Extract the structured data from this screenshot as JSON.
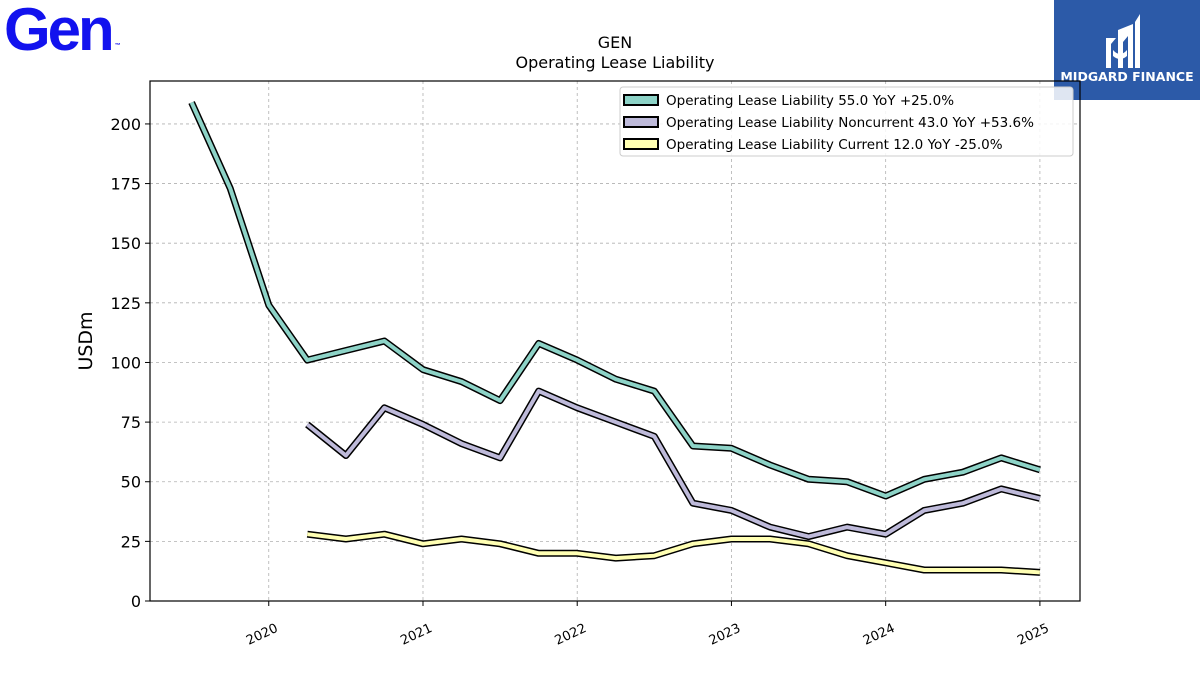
{
  "brand": {
    "name": "Gen",
    "tm": "™",
    "color": "#1212ee"
  },
  "badge": {
    "name": "MIDGARD FINANCE",
    "bg": "#2c5aa8"
  },
  "chart_data": {
    "type": "line",
    "title": "GEN",
    "subtitle": "Operating Lease Liability",
    "ylabel": "USDm",
    "xlabel": "",
    "ylim": [
      0,
      218
    ],
    "xlim": [
      2019.23,
      2025.26
    ],
    "yticks": [
      0,
      25,
      50,
      75,
      100,
      125,
      150,
      175,
      200
    ],
    "xticks": [
      2020,
      2021,
      2022,
      2023,
      2024,
      2025
    ],
    "grid": true,
    "legend_position": "top-right",
    "series": [
      {
        "name": "Operating Lease Liability  55.0 YoY +25.0%",
        "color": "#8dd3c7",
        "x": [
          2019.5,
          2019.75,
          2020.0,
          2020.25,
          2020.5,
          2020.75,
          2021.0,
          2021.25,
          2021.5,
          2021.75,
          2022.0,
          2022.25,
          2022.5,
          2022.75,
          2023.0,
          2023.25,
          2023.5,
          2023.75,
          2024.0,
          2024.25,
          2024.5,
          2024.75,
          2025.0
        ],
        "values": [
          209,
          173,
          124,
          101,
          105,
          109,
          97,
          92,
          84,
          108,
          101,
          93,
          88,
          65,
          64,
          57,
          51,
          50,
          44,
          51,
          54,
          60,
          55
        ]
      },
      {
        "name": "Operating Lease Liability Noncurrent  43.0 YoY +53.6%",
        "color": "#bebada",
        "x": [
          2020.25,
          2020.5,
          2020.75,
          2021.0,
          2021.25,
          2021.5,
          2021.75,
          2022.0,
          2022.25,
          2022.5,
          2022.75,
          2023.0,
          2023.25,
          2023.5,
          2023.75,
          2024.0,
          2024.25,
          2024.5,
          2024.75,
          2025.0
        ],
        "values": [
          74,
          61,
          81,
          74,
          66,
          60,
          88,
          81,
          75,
          69,
          41,
          38,
          31,
          27,
          31,
          28,
          38,
          41,
          47,
          43
        ]
      },
      {
        "name": "Operating Lease Liability Current  12.0 YoY -25.0%",
        "color": "#ffffb3",
        "x": [
          2020.25,
          2020.5,
          2020.75,
          2021.0,
          2021.25,
          2021.5,
          2021.75,
          2022.0,
          2022.25,
          2022.5,
          2022.75,
          2023.0,
          2023.25,
          2023.5,
          2023.75,
          2024.0,
          2024.25,
          2024.5,
          2024.75,
          2025.0
        ],
        "values": [
          28,
          26,
          28,
          24,
          26,
          24,
          20,
          20,
          18,
          19,
          24,
          26,
          26,
          24,
          19,
          16,
          13,
          13,
          13,
          12
        ]
      }
    ]
  }
}
